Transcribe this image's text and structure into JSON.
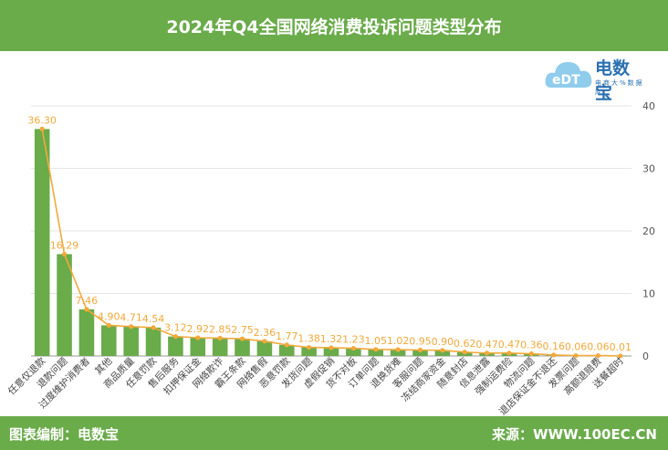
{
  "header": {
    "title": "2024年Q4全国网络消费投诉问题类型分布"
  },
  "footer": {
    "left": "图表编制：电数宝",
    "right": "来源：WWW.100EC.CN"
  },
  "logo": {
    "name": "电数宝",
    "tagline": "电商大%数据库",
    "mark": "eDT"
  },
  "colors": {
    "bar": "#6aab4a",
    "line": "#f2a93b",
    "label": "#f2a93b",
    "band": "#6aab4a"
  },
  "chart_data": {
    "type": "bar",
    "title": "2024年Q4全国网络消费投诉问题类型分布",
    "categories": [
      "任意仅退款",
      "退款问题",
      "过度维护消费者",
      "其他",
      "商品质量",
      "任意罚款",
      "售后服务",
      "扣押保证金",
      "网络欺诈",
      "霸王条款",
      "网络售假",
      "恶意罚款",
      "发货问题",
      "虚假促销",
      "货不对板",
      "订单问题",
      "退换货难",
      "客服问题",
      "冻结商家资金",
      "随意封店",
      "信息泄露",
      "强制运费险",
      "物流问题",
      "退店保证金不退还",
      "发票问题",
      "高额退赔费",
      "送餐超时"
    ],
    "values": [
      36.3,
      16.29,
      7.46,
      4.9,
      4.71,
      4.54,
      3.12,
      2.92,
      2.85,
      2.75,
      2.36,
      1.77,
      1.38,
      1.32,
      1.23,
      1.05,
      1.02,
      0.95,
      0.9,
      0.62,
      0.47,
      0.47,
      0.36,
      0.16,
      0.06,
      0.06,
      0.01
    ],
    "value_labels": [
      "36.30",
      "16.29",
      "7.46",
      "4.90",
      "4.71",
      "4.54",
      "3.12",
      "2.92",
      "2.85",
      "2.75",
      "2.36",
      "1.77",
      "1.38",
      "1.32",
      "1.23",
      "1.05",
      "1.02",
      "0.95",
      "0.90",
      "0.62",
      "0.47",
      "0.47",
      "0.36",
      "0.16",
      "0.06",
      "0.06",
      "0.01"
    ],
    "yticks": [
      "0",
      "10",
      "20",
      "30",
      "40"
    ],
    "ylim": [
      0,
      40
    ],
    "y_axis_side": "right",
    "grid": true,
    "overlay": "line"
  }
}
